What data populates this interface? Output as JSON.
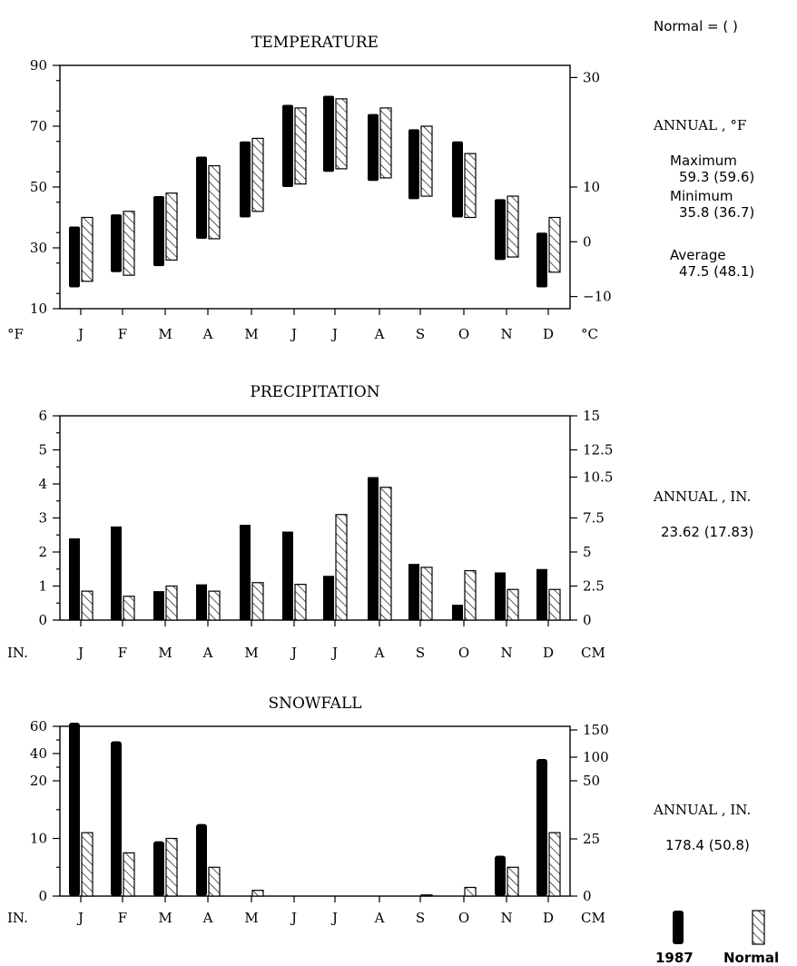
{
  "legend_note": "Normal = (  )",
  "legend": {
    "solid": "1987",
    "hatched": "Normal"
  },
  "month_labels": [
    "J",
    "F",
    "M",
    "A",
    "M",
    "J",
    "J",
    "A",
    "S",
    "O",
    "N",
    "D"
  ],
  "chart_data": [
    {
      "type": "bar",
      "title": "TEMPERATURE",
      "left_unit": "°F",
      "right_unit": "°C",
      "left_ticks": [
        10,
        30,
        50,
        70,
        90
      ],
      "right_ticks": [
        30,
        10,
        0,
        -10
      ],
      "ylim": [
        10,
        90
      ],
      "series": [
        {
          "name": "1987",
          "style": "solid",
          "low": [
            17,
            22,
            24,
            33,
            40,
            50,
            55,
            52,
            46,
            40,
            26,
            17
          ],
          "high": [
            37,
            41,
            47,
            60,
            65,
            77,
            80,
            74,
            69,
            65,
            46,
            35
          ]
        },
        {
          "name": "Normal",
          "style": "hatched",
          "low": [
            19,
            21,
            26,
            33,
            42,
            51,
            56,
            53,
            47,
            40,
            27,
            22
          ],
          "high": [
            40,
            42,
            48,
            57,
            66,
            76,
            79,
            76,
            70,
            61,
            47,
            40
          ]
        }
      ],
      "side": {
        "title": "ANNUAL ,  °F",
        "rows": [
          {
            "label": "Maximum",
            "value": "59.3 (59.6)"
          },
          {
            "label": "Minimum",
            "value": "35.8 (36.7)"
          },
          {
            "label": "Average",
            "value": "47.5 (48.1)"
          }
        ]
      }
    },
    {
      "type": "bar",
      "title": "PRECIPITATION",
      "left_unit": "IN.",
      "right_unit": "CM",
      "left_ticks": [
        0,
        1,
        2,
        3,
        4,
        5,
        6
      ],
      "right_ticks": [
        0,
        2.5,
        5,
        7.5,
        10.5,
        12.5,
        15
      ],
      "ylim": [
        0,
        6
      ],
      "series": [
        {
          "name": "1987",
          "style": "solid",
          "values": [
            2.4,
            2.75,
            0.85,
            1.05,
            2.8,
            2.6,
            1.3,
            4.2,
            1.65,
            0.45,
            1.4,
            1.5
          ]
        },
        {
          "name": "Normal",
          "style": "hatched",
          "values": [
            0.85,
            0.7,
            1.0,
            0.85,
            1.1,
            1.05,
            3.1,
            3.9,
            1.55,
            1.45,
            0.9,
            0.9
          ]
        }
      ],
      "side": {
        "title": "ANNUAL ,  IN.",
        "value": "23.62 (17.83)"
      }
    },
    {
      "type": "bar",
      "title": "SNOWFALL",
      "left_unit": "IN.",
      "right_unit": "CM",
      "left_ticks": [
        0,
        10,
        20,
        40,
        60
      ],
      "right_ticks": [
        0,
        25,
        50,
        100,
        150
      ],
      "scale": "linear 0-20, compressed 20-60",
      "series": [
        {
          "name": "1987",
          "style": "solid",
          "values": [
            63,
            49,
            9.5,
            12.5,
            0,
            0,
            0,
            0,
            0,
            0,
            7,
            36
          ]
        },
        {
          "name": "Normal",
          "style": "hatched",
          "values": [
            11,
            7.5,
            10,
            5,
            1,
            0,
            0,
            0,
            0.2,
            1.5,
            5,
            11
          ]
        }
      ],
      "side": {
        "title": "ANNUAL ,  IN.",
        "value": "178.4 (50.8)"
      }
    }
  ]
}
